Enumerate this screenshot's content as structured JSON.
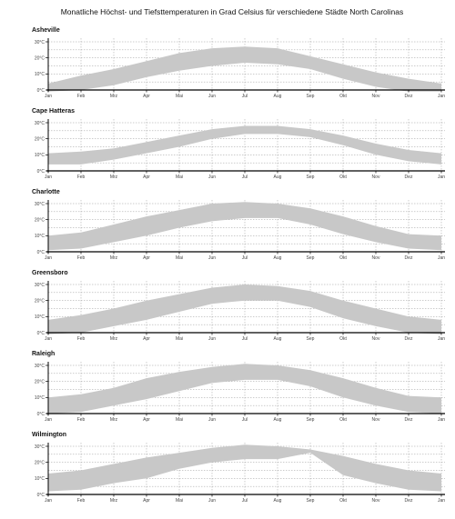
{
  "chart_data": {
    "type": "area",
    "title": "Monatliche Höchst- und Tiefsttemperaturen in Grad Celsius für verschiedene Städte North Carolinas",
    "categories": [
      "Jan",
      "Feb",
      "Mrz",
      "Apr",
      "Mai",
      "Jun",
      "Jul",
      "Aug",
      "Sep",
      "Okt",
      "Nov",
      "Dez",
      "Jan"
    ],
    "ylim": [
      0,
      30
    ],
    "yticks": [
      "0°C",
      "10°C",
      "20°C",
      "30°C"
    ],
    "grid": true,
    "fill_color": "#c8c8c8",
    "axis_color": "#000000",
    "grid_color": "#9a9a9a",
    "panels": [
      {
        "city": "Asheville",
        "high": [
          4,
          9,
          13,
          18,
          23,
          26,
          27,
          26,
          21,
          16,
          11,
          7,
          4
        ],
        "low": [
          -1,
          0,
          3,
          8,
          12,
          15,
          17,
          16,
          13,
          7,
          2,
          -1,
          -1
        ]
      },
      {
        "city": "Cape Hatteras",
        "high": [
          11,
          12,
          14,
          18,
          22,
          26,
          28,
          28,
          26,
          22,
          17,
          13,
          11
        ],
        "low": [
          4,
          4,
          7,
          11,
          15,
          20,
          23,
          23,
          21,
          16,
          10,
          6,
          4
        ]
      },
      {
        "city": "Charlotte",
        "high": [
          10,
          12,
          17,
          22,
          26,
          30,
          31,
          30,
          27,
          22,
          16,
          11,
          10
        ],
        "low": [
          1,
          2,
          6,
          10,
          15,
          19,
          21,
          21,
          17,
          11,
          6,
          2,
          1
        ]
      },
      {
        "city": "Greensboro",
        "high": [
          8,
          11,
          15,
          20,
          24,
          28,
          30,
          29,
          26,
          20,
          15,
          10,
          8
        ],
        "low": [
          -1,
          0,
          4,
          8,
          13,
          18,
          20,
          20,
          16,
          9,
          4,
          0,
          -1
        ]
      },
      {
        "city": "Raleigh",
        "high": [
          10,
          12,
          16,
          22,
          26,
          29,
          31,
          30,
          27,
          22,
          16,
          11,
          10
        ],
        "low": [
          0,
          1,
          5,
          9,
          14,
          19,
          21,
          21,
          17,
          10,
          5,
          1,
          0
        ]
      },
      {
        "city": "Wilmington",
        "high": [
          13,
          15,
          19,
          23,
          26,
          29,
          31,
          30,
          28,
          24,
          19,
          15,
          13
        ],
        "low": [
          2,
          3,
          7,
          10,
          16,
          20,
          22,
          22,
          26,
          12,
          7,
          3,
          2
        ]
      }
    ]
  }
}
